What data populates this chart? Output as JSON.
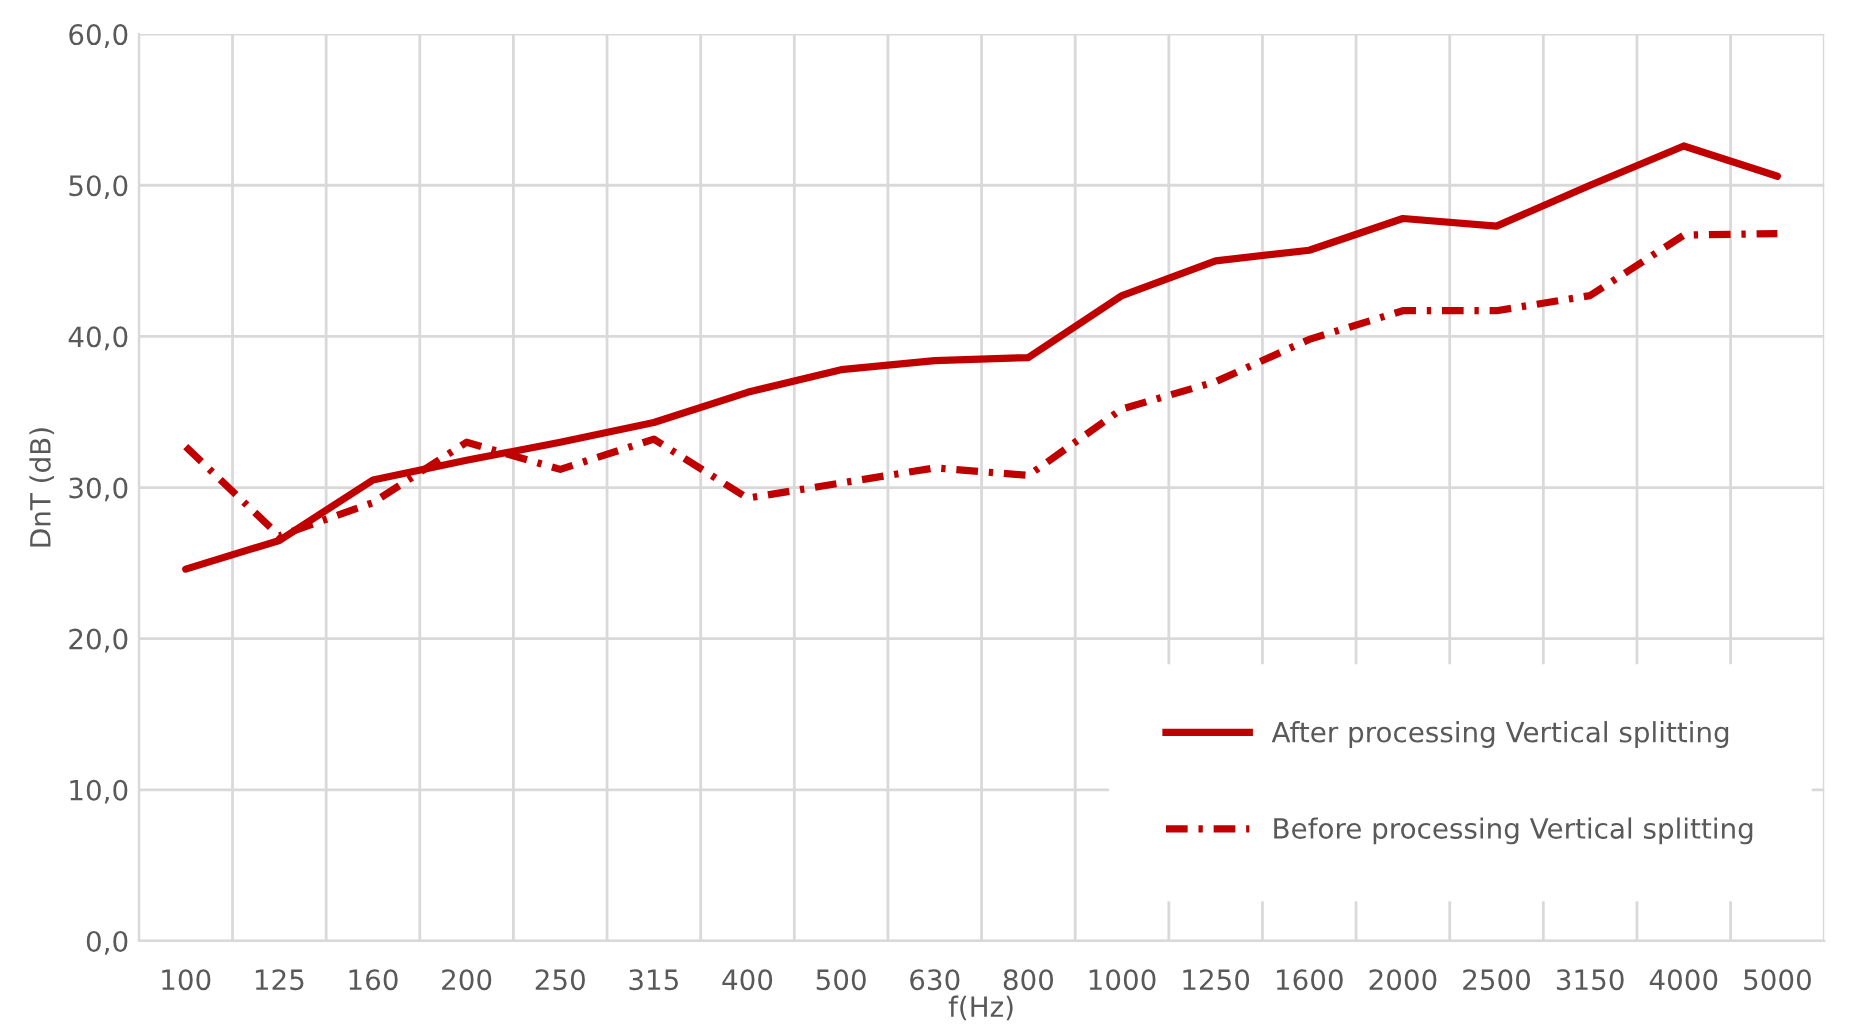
{
  "chart_data": {
    "type": "line",
    "xlabel": "f(Hz)",
    "ylabel": "DnT (dB)",
    "categories": [
      "100",
      "125",
      "160",
      "200",
      "250",
      "315",
      "400",
      "500",
      "630",
      "800",
      "1000",
      "1250",
      "1600",
      "2000",
      "2500",
      "3150",
      "4000",
      "5000"
    ],
    "series": [
      {
        "name": "After processing Vertical splitting",
        "color": "#c00000",
        "line_style": "solid",
        "values": [
          24.6,
          26.5,
          30.5,
          31.8,
          33.0,
          34.3,
          36.3,
          37.8,
          38.4,
          38.6,
          42.7,
          45.0,
          45.7,
          47.8,
          47.3,
          50.0,
          52.6,
          50.6
        ]
      },
      {
        "name": "Before processing Vertical splitting",
        "color": "#c00000",
        "line_style": "dashdot",
        "values": [
          32.7,
          26.8,
          29.0,
          33.0,
          31.2,
          33.2,
          29.3,
          30.3,
          31.3,
          30.8,
          35.2,
          37.0,
          39.8,
          41.7,
          41.7,
          42.7,
          46.7,
          46.8
        ]
      }
    ],
    "ylim": [
      0,
      60
    ],
    "yticks": [
      {
        "value": 0,
        "label": "0,0"
      },
      {
        "value": 10,
        "label": "10,0"
      },
      {
        "value": 20,
        "label": "20,0"
      },
      {
        "value": 30,
        "label": "30,0"
      },
      {
        "value": 40,
        "label": "40,0"
      },
      {
        "value": 50,
        "label": "50,0"
      },
      {
        "value": 60,
        "label": "60,0"
      }
    ],
    "grid": true,
    "legend": "bottom right",
    "marker": "none"
  }
}
